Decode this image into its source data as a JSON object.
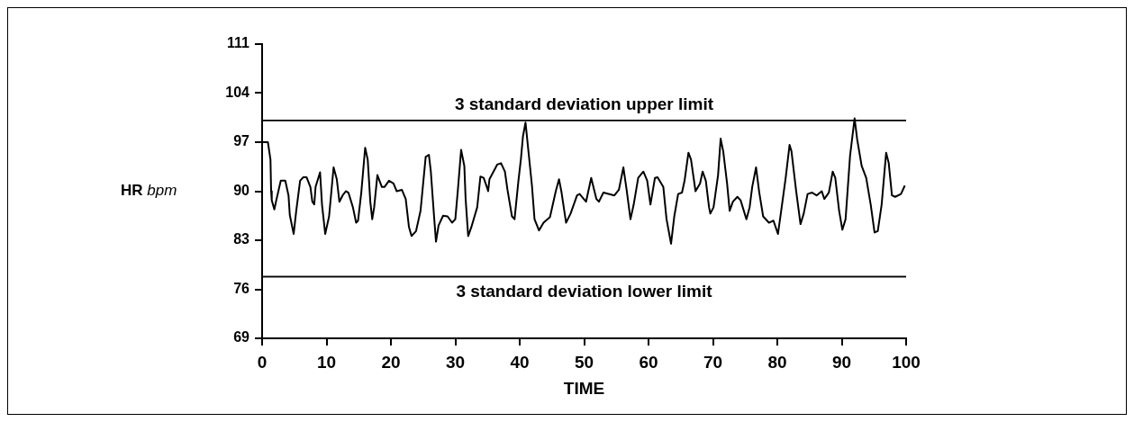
{
  "chart_data": {
    "type": "line",
    "xlabel": "TIME",
    "ylabel": "HR bpm",
    "xlim": [
      0,
      100
    ],
    "xticks": [
      0,
      10,
      20,
      30,
      40,
      50,
      60,
      70,
      80,
      90,
      100
    ],
    "ylim": [
      69,
      111
    ],
    "yticks": [
      69,
      76,
      83,
      90,
      97,
      104,
      111
    ],
    "grid": false,
    "legend": false,
    "marker": "none",
    "line_style": "solid",
    "ref_lines": [
      {
        "axis": "y",
        "value": 100.1,
        "label": "3 standard deviation upper limit"
      },
      {
        "axis": "y",
        "value": 77.8,
        "label": "3 standard deviation lower limit"
      }
    ],
    "series": [
      {
        "color": "#000000",
        "x": [
          0,
          0.9,
          1.3,
          1.4,
          1.5,
          1.9,
          2.2,
          2.9,
          3.6,
          4.1,
          4.3,
          4.9,
          5.3,
          5.9,
          6.4,
          6.9,
          7.5,
          7.8,
          8.1,
          8.3,
          9.0,
          9.3,
          9.8,
          10.4,
          11.1,
          11.6,
          12.0,
          12.5,
          13.0,
          13.4,
          14.1,
          14.6,
          14.9,
          15.4,
          16.0,
          16.4,
          16.8,
          17.1,
          17.4,
          17.9,
          18.6,
          19.0,
          19.7,
          20.4,
          20.9,
          21.7,
          22.3,
          22.8,
          23.2,
          23.9,
          24.6,
          25.4,
          25.9,
          26.2,
          26.7,
          27.0,
          27.4,
          28.1,
          28.8,
          29.5,
          30.0,
          30.4,
          30.9,
          31.4,
          31.6,
          32.0,
          32.5,
          33.4,
          33.9,
          34.4,
          34.9,
          35.1,
          35.3,
          36.5,
          37.1,
          37.7,
          38.1,
          38.8,
          39.2,
          39.8,
          40.2,
          40.5,
          40.9,
          41.4,
          41.9,
          42.3,
          43.0,
          43.7,
          44.7,
          45.6,
          46.1,
          46.5,
          47.2,
          47.9,
          48.9,
          49.3,
          50.3,
          51.1,
          51.9,
          52.3,
          53.0,
          54.7,
          55.4,
          56.1,
          56.6,
          57.2,
          57.7,
          58.4,
          59.2,
          59.8,
          60.3,
          61.0,
          61.4,
          62.3,
          62.8,
          63.5,
          64.0,
          64.6,
          65.2,
          65.6,
          66.2,
          66.6,
          67.3,
          68.0,
          68.4,
          68.9,
          69.4,
          69.6,
          70.1,
          70.8,
          71.2,
          71.6,
          72.2,
          72.6,
          73.1,
          73.8,
          74.3,
          75.2,
          75.7,
          76.1,
          76.7,
          77.2,
          77.8,
          78.7,
          79.4,
          80.1,
          80.6,
          81.3,
          81.9,
          82.2,
          82.9,
          83.6,
          84.1,
          84.7,
          85.4,
          86.1,
          86.9,
          87.3,
          88.0,
          88.6,
          89.0,
          89.6,
          90.1,
          90.6,
          91.3,
          92.0,
          92.4,
          93.1,
          93.8,
          94.5,
          95.1,
          95.6,
          96.2,
          96.9,
          97.3,
          97.8,
          98.3,
          99.2,
          99.8
        ],
        "values": [
          97,
          97,
          94.5,
          90,
          88.7,
          87.4,
          88.7,
          91.5,
          91.5,
          89.4,
          86.6,
          83.9,
          87.2,
          91.5,
          92,
          92,
          90.6,
          88.5,
          88.1,
          90.6,
          92.7,
          88.1,
          83.9,
          86.4,
          93.4,
          91.7,
          88.5,
          89.4,
          90,
          89.8,
          87.7,
          85.5,
          85.8,
          89.8,
          96.2,
          94.5,
          88.5,
          86,
          87.7,
          92.3,
          90.6,
          90.6,
          91.5,
          91.1,
          90,
          90.2,
          88.9,
          84.9,
          83.6,
          84.3,
          87.2,
          94.9,
          95.2,
          92.8,
          86.4,
          82.8,
          85.1,
          86.5,
          86.4,
          85.5,
          86,
          90.2,
          95.9,
          93.6,
          88.9,
          83.6,
          84.9,
          87.7,
          92.1,
          91.9,
          90.6,
          90,
          91.7,
          93.8,
          94,
          92.8,
          90.2,
          86.4,
          86,
          91.5,
          94.7,
          97.8,
          99.8,
          95.3,
          90.8,
          86,
          84.4,
          85.5,
          86.3,
          90,
          91.7,
          89.8,
          85.5,
          86.8,
          89.4,
          89.6,
          88.5,
          91.9,
          88.9,
          88.5,
          89.8,
          89.4,
          90.2,
          93.4,
          90.2,
          86,
          88.1,
          91.9,
          92.8,
          91.5,
          88.1,
          91.9,
          92,
          90.6,
          86,
          82.5,
          86.4,
          89.6,
          89.8,
          91.5,
          95.5,
          94.5,
          90,
          91.1,
          92.8,
          91.5,
          87.7,
          86.8,
          87.7,
          92.3,
          97.5,
          95.7,
          91.1,
          87.2,
          88.5,
          89.2,
          88.7,
          86,
          87.7,
          90.6,
          93.4,
          89.8,
          86.4,
          85.5,
          85.8,
          83.9,
          87.2,
          91.9,
          96.6,
          95.7,
          90.2,
          85.3,
          86.8,
          89.6,
          89.8,
          89.4,
          90,
          88.9,
          89.8,
          92.8,
          91.9,
          87.2,
          84.5,
          86,
          95.1,
          100.4,
          97.4,
          93.6,
          91.9,
          88.1,
          84.1,
          84.3,
          88.1,
          95.5,
          94,
          89.4,
          89.2,
          89.6,
          90.8
        ]
      }
    ]
  }
}
